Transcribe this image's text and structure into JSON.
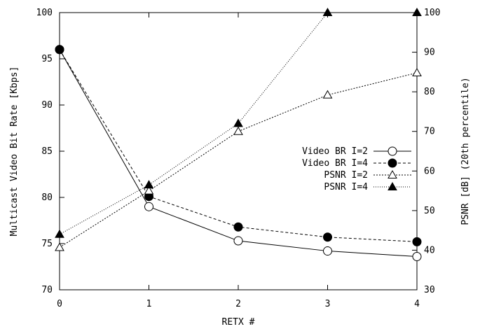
{
  "chart_data": {
    "type": "line",
    "title": "",
    "xlabel": "RETX #",
    "ylabel_left": "Multicast Video Bit Rate [Kbps]",
    "ylabel_right": "PSNR [dB] (20th percentile)",
    "x": [
      0,
      1,
      2,
      3,
      4
    ],
    "xlim": [
      0,
      4
    ],
    "ylim_left": [
      70,
      100
    ],
    "ylim_right": [
      30,
      100
    ],
    "xticks": [
      "0",
      "1",
      "2",
      "3",
      "4"
    ],
    "yticks_left": [
      "70",
      "75",
      "80",
      "85",
      "90",
      "95",
      "100"
    ],
    "yticks_right": [
      "30",
      "40",
      "50",
      "60",
      "70",
      "80",
      "90",
      "100"
    ],
    "grid": false,
    "legend_position": "center-right",
    "series": [
      {
        "name": "Video BR I=2",
        "axis": "left",
        "marker": "open-circle",
        "line": "solid",
        "values": [
          96.0,
          79.0,
          75.3,
          74.2,
          73.6
        ]
      },
      {
        "name": "Video BR I=4",
        "axis": "left",
        "marker": "filled-circle",
        "line": "dashed",
        "values": [
          96.0,
          80.1,
          76.8,
          75.7,
          75.2
        ]
      },
      {
        "name": "PSNR I=2",
        "axis": "right",
        "marker": "open-triangle",
        "line": "dotted",
        "values": [
          40.7,
          55.0,
          70.0,
          79.2,
          84.8
        ]
      },
      {
        "name": "PSNR I=4",
        "axis": "right",
        "marker": "filled-triangle",
        "line": "dotted-fine",
        "values": [
          44.0,
          56.5,
          72.0,
          100.0,
          100.0
        ]
      }
    ]
  }
}
